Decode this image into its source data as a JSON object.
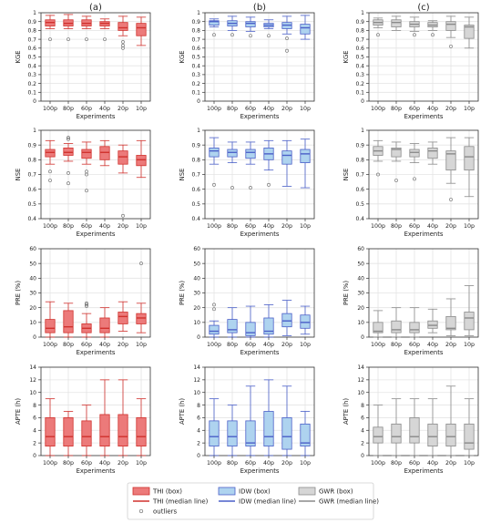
{
  "colors": {
    "thi_fill": "#ec7a7a",
    "thi_line": "#d0312d",
    "idw_fill": "#aed3ef",
    "idw_line": "#4a5fc8",
    "gwr_fill": "#d6d6d6",
    "gwr_line": "#8a8a8a",
    "grid": "#e4e4e4",
    "axis": "#333333"
  },
  "legend": {
    "placement": "bottom-center",
    "items": [
      {
        "kind": "box",
        "method": "thi",
        "label": "THI (box)"
      },
      {
        "kind": "box",
        "method": "idw",
        "label": "IDW (box)"
      },
      {
        "kind": "box",
        "method": "gwr",
        "label": "GWR (box)"
      },
      {
        "kind": "line",
        "method": "thi",
        "label": "THI (median line)"
      },
      {
        "kind": "line",
        "method": "idw",
        "label": "IDW (median line)"
      },
      {
        "kind": "line",
        "method": "gwr",
        "label": "GWR (median line)"
      },
      {
        "kind": "outlier",
        "label": "outliers"
      }
    ]
  },
  "chart_data": {
    "type": "boxplot",
    "column_titles": [
      "(a)",
      "(b)",
      "(c)"
    ],
    "methods": [
      "thi",
      "idw",
      "gwr"
    ],
    "categories": [
      "100p",
      "80p",
      "60p",
      "40p",
      "20p",
      "10p"
    ],
    "xlabel": "Experiments",
    "grid": true,
    "rows": [
      {
        "ylabel": "KGE",
        "ylim": [
          0,
          1.0
        ],
        "yticks": [
          0,
          0.1,
          0.2,
          0.3,
          0.4,
          0.5,
          0.6,
          0.7,
          0.8,
          0.9,
          1.0
        ],
        "series": [
          {
            "method": "thi",
            "boxes": [
              {
                "whislo": 0.82,
                "q1": 0.85,
                "med": 0.89,
                "q3": 0.92,
                "whishi": 0.97,
                "fliers": [
                  0.7
                ]
              },
              {
                "whislo": 0.82,
                "q1": 0.85,
                "med": 0.88,
                "q3": 0.92,
                "whishi": 0.98,
                "fliers": [
                  0.7
                ]
              },
              {
                "whislo": 0.82,
                "q1": 0.85,
                "med": 0.88,
                "q3": 0.92,
                "whishi": 0.96,
                "fliers": [
                  0.7
                ]
              },
              {
                "whislo": 0.82,
                "q1": 0.85,
                "med": 0.88,
                "q3": 0.9,
                "whishi": 0.93,
                "fliers": [
                  0.7
                ]
              },
              {
                "whislo": 0.74,
                "q1": 0.8,
                "med": 0.83,
                "q3": 0.89,
                "whishi": 0.96,
                "fliers": [
                  0.67,
                  0.63,
                  0.6
                ]
              },
              {
                "whislo": 0.63,
                "q1": 0.74,
                "med": 0.83,
                "q3": 0.88,
                "whishi": 0.95,
                "fliers": []
              }
            ]
          },
          {
            "method": "idw",
            "boxes": [
              {
                "whislo": 0.84,
                "q1": 0.86,
                "med": 0.9,
                "q3": 0.91,
                "whishi": 0.93,
                "fliers": [
                  0.75
                ]
              },
              {
                "whislo": 0.8,
                "q1": 0.85,
                "med": 0.88,
                "q3": 0.91,
                "whishi": 0.96,
                "fliers": [
                  0.75
                ]
              },
              {
                "whislo": 0.79,
                "q1": 0.84,
                "med": 0.88,
                "q3": 0.9,
                "whishi": 0.95,
                "fliers": [
                  0.74
                ]
              },
              {
                "whislo": 0.82,
                "q1": 0.84,
                "med": 0.86,
                "q3": 0.88,
                "whishi": 0.92,
                "fliers": [
                  0.74
                ]
              },
              {
                "whislo": 0.76,
                "q1": 0.82,
                "med": 0.86,
                "q3": 0.89,
                "whishi": 0.96,
                "fliers": [
                  0.71,
                  0.57
                ]
              },
              {
                "whislo": 0.7,
                "q1": 0.76,
                "med": 0.83,
                "q3": 0.87,
                "whishi": 0.97,
                "fliers": []
              }
            ]
          },
          {
            "method": "gwr",
            "boxes": [
              {
                "whislo": 0.83,
                "q1": 0.86,
                "med": 0.89,
                "q3": 0.92,
                "whishi": 0.94,
                "fliers": [
                  0.75
                ]
              },
              {
                "whislo": 0.8,
                "q1": 0.84,
                "med": 0.89,
                "q3": 0.92,
                "whishi": 0.96,
                "fliers": []
              },
              {
                "whislo": 0.79,
                "q1": 0.84,
                "med": 0.87,
                "q3": 0.9,
                "whishi": 0.95,
                "fliers": [
                  0.75
                ]
              },
              {
                "whislo": 0.8,
                "q1": 0.84,
                "med": 0.86,
                "q3": 0.89,
                "whishi": 0.91,
                "fliers": [
                  0.75
                ]
              },
              {
                "whislo": 0.72,
                "q1": 0.8,
                "med": 0.87,
                "q3": 0.9,
                "whishi": 0.96,
                "fliers": [
                  0.62
                ]
              },
              {
                "whislo": 0.6,
                "q1": 0.71,
                "med": 0.84,
                "q3": 0.86,
                "whishi": 0.95,
                "fliers": []
              }
            ]
          }
        ]
      },
      {
        "ylabel": "NSE",
        "ylim": [
          0.4,
          1.0
        ],
        "yticks": [
          0.4,
          0.5,
          0.6,
          0.7,
          0.8,
          0.9,
          1.0
        ],
        "series": [
          {
            "method": "thi",
            "boxes": [
              {
                "whislo": 0.77,
                "q1": 0.82,
                "med": 0.85,
                "q3": 0.87,
                "whishi": 0.93,
                "fliers": [
                  0.72,
                  0.66
                ]
              },
              {
                "whislo": 0.79,
                "q1": 0.83,
                "med": 0.85,
                "q3": 0.88,
                "whishi": 0.91,
                "fliers": [
                  0.95,
                  0.94,
                  0.71,
                  0.64
                ]
              },
              {
                "whislo": 0.77,
                "q1": 0.81,
                "med": 0.85,
                "q3": 0.87,
                "whishi": 0.92,
                "fliers": [
                  0.72,
                  0.7,
                  0.59
                ]
              },
              {
                "whislo": 0.76,
                "q1": 0.8,
                "med": 0.85,
                "q3": 0.89,
                "whishi": 0.93,
                "fliers": []
              },
              {
                "whislo": 0.71,
                "q1": 0.77,
                "med": 0.82,
                "q3": 0.86,
                "whishi": 0.9,
                "fliers": [
                  0.42
                ]
              },
              {
                "whislo": 0.68,
                "q1": 0.76,
                "med": 0.8,
                "q3": 0.83,
                "whishi": 0.93,
                "fliers": []
              }
            ]
          },
          {
            "method": "idw",
            "boxes": [
              {
                "whislo": 0.77,
                "q1": 0.82,
                "med": 0.86,
                "q3": 0.88,
                "whishi": 0.95,
                "fliers": [
                  0.63
                ]
              },
              {
                "whislo": 0.78,
                "q1": 0.82,
                "med": 0.85,
                "q3": 0.87,
                "whishi": 0.92,
                "fliers": [
                  0.61
                ]
              },
              {
                "whislo": 0.77,
                "q1": 0.81,
                "med": 0.85,
                "q3": 0.87,
                "whishi": 0.92,
                "fliers": [
                  0.61
                ]
              },
              {
                "whislo": 0.73,
                "q1": 0.8,
                "med": 0.84,
                "q3": 0.88,
                "whishi": 0.93,
                "fliers": [
                  0.63
                ]
              },
              {
                "whislo": 0.62,
                "q1": 0.77,
                "med": 0.83,
                "q3": 0.86,
                "whishi": 0.93,
                "fliers": []
              },
              {
                "whislo": 0.61,
                "q1": 0.78,
                "med": 0.84,
                "q3": 0.87,
                "whishi": 0.94,
                "fliers": []
              }
            ]
          },
          {
            "method": "gwr",
            "boxes": [
              {
                "whislo": 0.79,
                "q1": 0.83,
                "med": 0.86,
                "q3": 0.89,
                "whishi": 0.93,
                "fliers": [
                  0.7
                ]
              },
              {
                "whislo": 0.79,
                "q1": 0.82,
                "med": 0.87,
                "q3": 0.88,
                "whishi": 0.92,
                "fliers": [
                  0.66
                ]
              },
              {
                "whislo": 0.78,
                "q1": 0.82,
                "med": 0.85,
                "q3": 0.87,
                "whishi": 0.91,
                "fliers": [
                  0.67
                ]
              },
              {
                "whislo": 0.77,
                "q1": 0.81,
                "med": 0.86,
                "q3": 0.88,
                "whishi": 0.92,
                "fliers": []
              },
              {
                "whislo": 0.64,
                "q1": 0.73,
                "med": 0.84,
                "q3": 0.86,
                "whishi": 0.95,
                "fliers": [
                  0.53
                ]
              },
              {
                "whislo": 0.55,
                "q1": 0.73,
                "med": 0.82,
                "q3": 0.89,
                "whishi": 0.95,
                "fliers": []
              }
            ]
          }
        ]
      },
      {
        "ylabel": "PRE (%)",
        "ylim": [
          0,
          60
        ],
        "yticks": [
          0,
          10,
          20,
          30,
          40,
          50,
          60
        ],
        "series": [
          {
            "method": "thi",
            "boxes": [
              {
                "whislo": 0,
                "q1": 3,
                "med": 6,
                "q3": 12,
                "whishi": 24,
                "fliers": []
              },
              {
                "whislo": 0,
                "q1": 3,
                "med": 7,
                "q3": 18,
                "whishi": 23,
                "fliers": []
              },
              {
                "whislo": 0,
                "q1": 3,
                "med": 6,
                "q3": 9,
                "whishi": 16,
                "fliers": [
                  23,
                  22,
                  21
                ]
              },
              {
                "whislo": 0,
                "q1": 3,
                "med": 6,
                "q3": 13,
                "whishi": 20,
                "fliers": []
              },
              {
                "whislo": 4,
                "q1": 9,
                "med": 14,
                "q3": 17,
                "whishi": 24,
                "fliers": []
              },
              {
                "whislo": 3,
                "q1": 9,
                "med": 13,
                "q3": 16,
                "whishi": 23,
                "fliers": [
                  50
                ]
              }
            ]
          },
          {
            "method": "idw",
            "boxes": [
              {
                "whislo": 0,
                "q1": 2,
                "med": 4,
                "q3": 8,
                "whishi": 11,
                "fliers": [
                  22,
                  19
                ]
              },
              {
                "whislo": 0,
                "q1": 3,
                "med": 5,
                "q3": 12,
                "whishi": 20,
                "fliers": []
              },
              {
                "whislo": 0,
                "q1": 1,
                "med": 3,
                "q3": 10,
                "whishi": 21,
                "fliers": []
              },
              {
                "whislo": 0,
                "q1": 2,
                "med": 4,
                "q3": 13,
                "whishi": 22,
                "fliers": []
              },
              {
                "whislo": 1,
                "q1": 7,
                "med": 11,
                "q3": 16,
                "whishi": 25,
                "fliers": []
              },
              {
                "whislo": 2,
                "q1": 6,
                "med": 10,
                "q3": 15,
                "whishi": 21,
                "fliers": []
              }
            ]
          },
          {
            "method": "gwr",
            "boxes": [
              {
                "whislo": 0,
                "q1": 3,
                "med": 4,
                "q3": 10,
                "whishi": 18,
                "fliers": []
              },
              {
                "whislo": 0,
                "q1": 3,
                "med": 5,
                "q3": 11,
                "whishi": 20,
                "fliers": []
              },
              {
                "whislo": 0,
                "q1": 3,
                "med": 5,
                "q3": 10,
                "whishi": 20,
                "fliers": []
              },
              {
                "whislo": 3,
                "q1": 6,
                "med": 8,
                "q3": 11,
                "whishi": 19,
                "fliers": []
              },
              {
                "whislo": 1,
                "q1": 5,
                "med": 6,
                "q3": 14,
                "whishi": 26,
                "fliers": []
              },
              {
                "whislo": 1,
                "q1": 5,
                "med": 13,
                "q3": 17,
                "whishi": 35,
                "fliers": []
              }
            ]
          }
        ]
      },
      {
        "ylabel": "APTE (h)",
        "ylim": [
          0,
          14
        ],
        "yticks": [
          0,
          2,
          4,
          6,
          8,
          10,
          12,
          14
        ],
        "series": [
          {
            "method": "thi",
            "boxes": [
              {
                "whislo": 0,
                "q1": 1.5,
                "med": 3,
                "q3": 6,
                "whishi": 9,
                "fliers": []
              },
              {
                "whislo": 0,
                "q1": 1.5,
                "med": 3,
                "q3": 6,
                "whishi": 7,
                "fliers": []
              },
              {
                "whislo": 0,
                "q1": 1.5,
                "med": 3,
                "q3": 5.5,
                "whishi": 8,
                "fliers": []
              },
              {
                "whislo": 0,
                "q1": 1.5,
                "med": 3,
                "q3": 6.5,
                "whishi": 12,
                "fliers": []
              },
              {
                "whislo": 0,
                "q1": 1.5,
                "med": 3,
                "q3": 6.5,
                "whishi": 12,
                "fliers": []
              },
              {
                "whislo": 0,
                "q1": 1.5,
                "med": 3,
                "q3": 6,
                "whishi": 9,
                "fliers": []
              }
            ]
          },
          {
            "method": "idw",
            "boxes": [
              {
                "whislo": 0,
                "q1": 1.5,
                "med": 3,
                "q3": 5.5,
                "whishi": 9,
                "fliers": []
              },
              {
                "whislo": 0,
                "q1": 1.5,
                "med": 3,
                "q3": 5.5,
                "whishi": 8,
                "fliers": []
              },
              {
                "whislo": 0,
                "q1": 1.5,
                "med": 2,
                "q3": 5.5,
                "whishi": 11,
                "fliers": []
              },
              {
                "whislo": 0,
                "q1": 1.5,
                "med": 3,
                "q3": 7,
                "whishi": 12,
                "fliers": []
              },
              {
                "whislo": 0,
                "q1": 1,
                "med": 3,
                "q3": 6,
                "whishi": 11,
                "fliers": []
              },
              {
                "whislo": 0,
                "q1": 1.5,
                "med": 2,
                "q3": 5,
                "whishi": 7,
                "fliers": []
              }
            ]
          },
          {
            "method": "gwr",
            "boxes": [
              {
                "whislo": 0,
                "q1": 2,
                "med": 3,
                "q3": 4.5,
                "whishi": 8,
                "fliers": []
              },
              {
                "whislo": 0,
                "q1": 2,
                "med": 3,
                "q3": 5,
                "whishi": 9,
                "fliers": []
              },
              {
                "whislo": 0,
                "q1": 2,
                "med": 3,
                "q3": 6,
                "whishi": 9,
                "fliers": []
              },
              {
                "whislo": 0,
                "q1": 1.5,
                "med": 3,
                "q3": 5,
                "whishi": 9,
                "fliers": []
              },
              {
                "whislo": 0,
                "q1": 1.5,
                "med": 3,
                "q3": 5,
                "whishi": 11,
                "fliers": []
              },
              {
                "whislo": 0,
                "q1": 1,
                "med": 2,
                "q3": 5,
                "whishi": 9,
                "fliers": []
              }
            ]
          }
        ]
      }
    ]
  }
}
